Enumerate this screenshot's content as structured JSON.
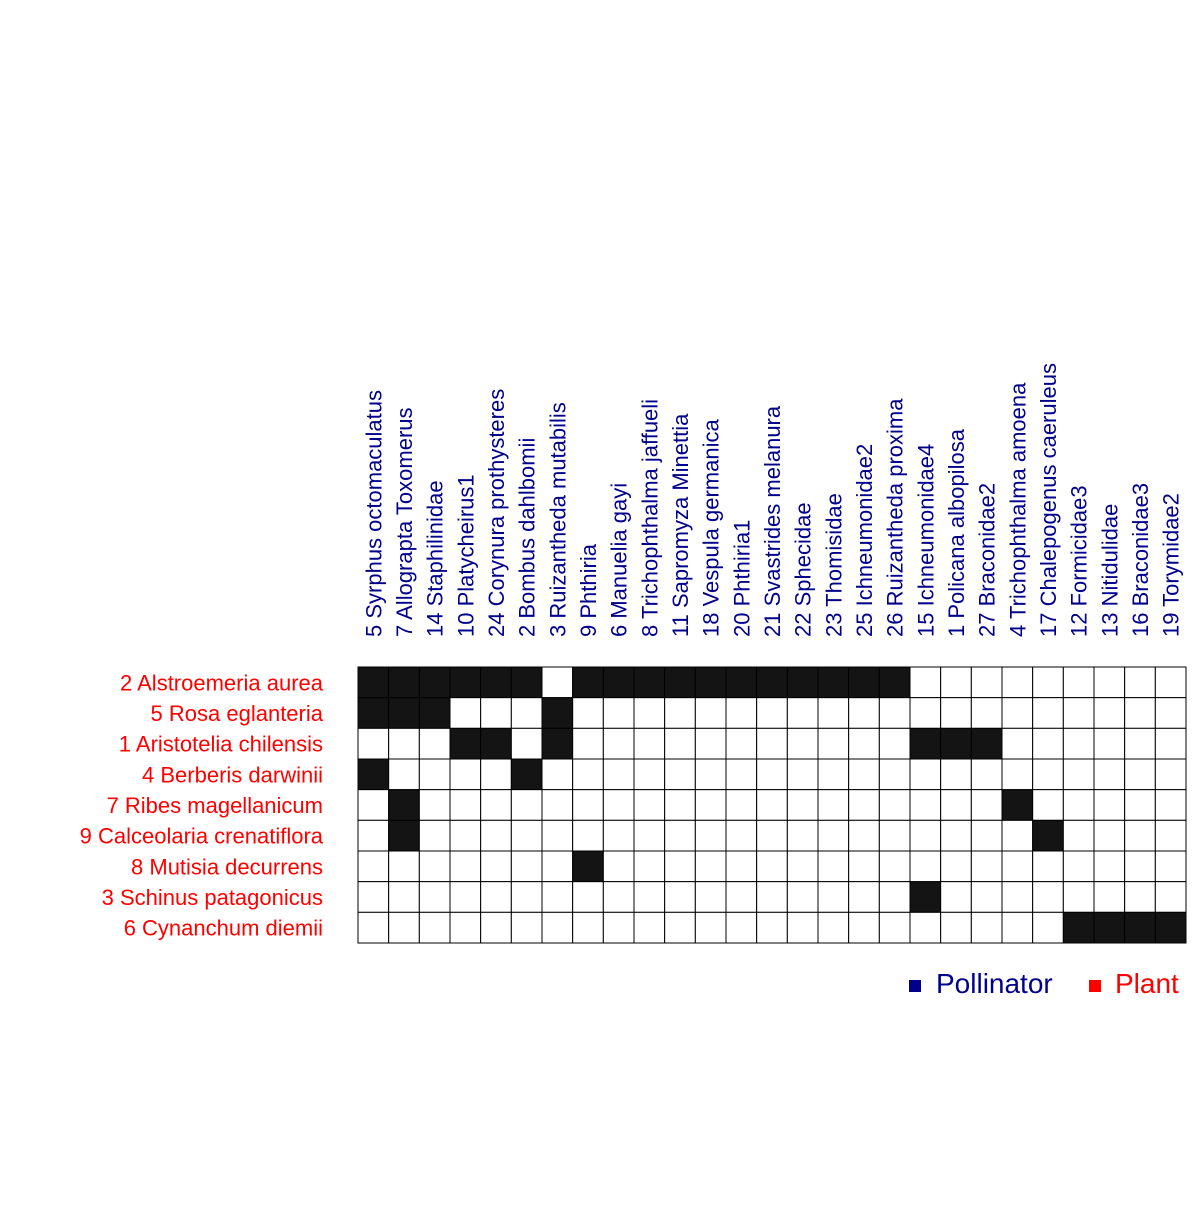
{
  "colors": {
    "pollinator": "#00008B",
    "plant": "#FF0000",
    "filled": "#141414",
    "empty": "#FFFFFF",
    "grid": "#000000"
  },
  "legend": {
    "pollinator_label": "Pollinator",
    "plant_label": "Plant"
  },
  "chart_data": {
    "type": "heatmap",
    "rows": [
      "2 Alstroemeria aurea",
      "5 Rosa eglanteria",
      "1 Aristotelia chilensis",
      "4 Berberis darwinii",
      "7 Ribes magellanicum",
      "9 Calceolaria crenatiflora",
      "8 Mutisia decurrens",
      "3 Schinus patagonicus",
      "6 Cynanchum diemii"
    ],
    "columns": [
      "5 Syrphus octomaculatus",
      "7 Allograpta Toxomerus",
      "14 Staphilinidae",
      "10 Platycheirus1",
      "24 Corynura prothysteres",
      "2 Bombus dahlbomii",
      "3 Ruizantheda mutabilis",
      "9 Phthiria",
      "6 Manuelia gayi",
      "8 Trichophthalma jaffueli",
      "11 Sapromyza Minettia",
      "18 Vespula germanica",
      "20 Phthiria1",
      "21 Svastrides melanura",
      "22 Sphecidae",
      "23 Thomisidae",
      "25 Ichneumonidae2",
      "26 Ruizantheda proxima",
      "15 Ichneumonidae4",
      "1 Policana albopilosa",
      "27 Braconidae2",
      "4 Trichophthalma amoena",
      "17 Chalepogenus caeruleus",
      "12 Formicidae3",
      "13 Nitidulidae",
      "16 Braconidae3",
      "19 Torymidae2"
    ],
    "matrix": [
      [
        1,
        1,
        1,
        1,
        1,
        1,
        0,
        1,
        1,
        1,
        1,
        1,
        1,
        1,
        1,
        1,
        1,
        1,
        0,
        0,
        0,
        0,
        0,
        0,
        0,
        0,
        0
      ],
      [
        1,
        1,
        1,
        0,
        0,
        0,
        1,
        0,
        0,
        0,
        0,
        0,
        0,
        0,
        0,
        0,
        0,
        0,
        0,
        0,
        0,
        0,
        0,
        0,
        0,
        0,
        0
      ],
      [
        0,
        0,
        0,
        1,
        1,
        0,
        1,
        0,
        0,
        0,
        0,
        0,
        0,
        0,
        0,
        0,
        0,
        0,
        1,
        1,
        1,
        0,
        0,
        0,
        0,
        0,
        0
      ],
      [
        1,
        0,
        0,
        0,
        0,
        1,
        0,
        0,
        0,
        0,
        0,
        0,
        0,
        0,
        0,
        0,
        0,
        0,
        0,
        0,
        0,
        0,
        0,
        0,
        0,
        0,
        0
      ],
      [
        0,
        1,
        0,
        0,
        0,
        0,
        0,
        0,
        0,
        0,
        0,
        0,
        0,
        0,
        0,
        0,
        0,
        0,
        0,
        0,
        0,
        1,
        0,
        0,
        0,
        0,
        0
      ],
      [
        0,
        1,
        0,
        0,
        0,
        0,
        0,
        0,
        0,
        0,
        0,
        0,
        0,
        0,
        0,
        0,
        0,
        0,
        0,
        0,
        0,
        0,
        1,
        0,
        0,
        0,
        0
      ],
      [
        0,
        0,
        0,
        0,
        0,
        0,
        0,
        1,
        0,
        0,
        0,
        0,
        0,
        0,
        0,
        0,
        0,
        0,
        0,
        0,
        0,
        0,
        0,
        0,
        0,
        0,
        0
      ],
      [
        0,
        0,
        0,
        0,
        0,
        0,
        0,
        0,
        0,
        0,
        0,
        0,
        0,
        0,
        0,
        0,
        0,
        0,
        1,
        0,
        0,
        0,
        0,
        0,
        0,
        0,
        0
      ],
      [
        0,
        0,
        0,
        0,
        0,
        0,
        0,
        0,
        0,
        0,
        0,
        0,
        0,
        0,
        0,
        0,
        0,
        0,
        0,
        0,
        0,
        0,
        0,
        1,
        1,
        1,
        1
      ]
    ],
    "row_group": "Plant",
    "column_group": "Pollinator",
    "legend_position": "bottom-right"
  }
}
